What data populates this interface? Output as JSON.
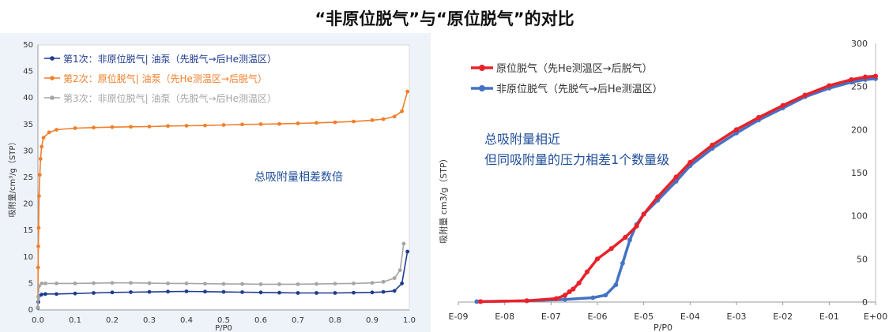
{
  "title": "“非原位脱气”与“原位脱气”的对比",
  "chart_data": [
    {
      "type": "line",
      "title": "",
      "xlabel": "P/P0",
      "ylabel": "吸附量/cm³/g（STP）",
      "xlim": [
        0,
        1.0
      ],
      "ylim": [
        0,
        50
      ],
      "xticks": [
        "0.0",
        "0.1",
        "0.2",
        "0.3",
        "0.4",
        "0.5",
        "0.6",
        "0.7",
        "0.8",
        "0.9",
        "1.0"
      ],
      "yticks": [
        "0",
        "5",
        "10",
        "15",
        "20",
        "25",
        "30",
        "35",
        "40",
        "45",
        "50"
      ],
      "legend_position": "top-left",
      "annotation": "总吸附量相差数倍",
      "grid": false,
      "series": [
        {
          "name": "第1次：非原位脱气| 油泵（先脱气→后He测温区）",
          "color": "#1f3c8f",
          "points": [
            [
              0.0,
              0.4
            ],
            [
              0.001,
              1.5
            ],
            [
              0.003,
              2.6
            ],
            [
              0.01,
              2.9
            ],
            [
              0.02,
              3.0
            ],
            [
              0.05,
              3.0
            ],
            [
              0.1,
              3.1
            ],
            [
              0.15,
              3.2
            ],
            [
              0.2,
              3.3
            ],
            [
              0.25,
              3.35
            ],
            [
              0.3,
              3.4
            ],
            [
              0.35,
              3.45
            ],
            [
              0.4,
              3.5
            ],
            [
              0.45,
              3.45
            ],
            [
              0.5,
              3.4
            ],
            [
              0.55,
              3.35
            ],
            [
              0.6,
              3.3
            ],
            [
              0.65,
              3.25
            ],
            [
              0.7,
              3.2
            ],
            [
              0.75,
              3.2
            ],
            [
              0.8,
              3.2
            ],
            [
              0.85,
              3.25
            ],
            [
              0.9,
              3.3
            ],
            [
              0.93,
              3.4
            ],
            [
              0.96,
              3.6
            ],
            [
              0.98,
              5.0
            ],
            [
              0.995,
              11.0
            ]
          ]
        },
        {
          "name": "第2次：原位脱气| 油泵（先He测温区→后脱气）",
          "color": "#f07f2a",
          "points": [
            [
              0.0,
              0.5
            ],
            [
              0.0005,
              8.0
            ],
            [
              0.001,
              12.0
            ],
            [
              0.002,
              15.5
            ],
            [
              0.003,
              21.5
            ],
            [
              0.005,
              25.5
            ],
            [
              0.007,
              28.5
            ],
            [
              0.01,
              30.8
            ],
            [
              0.015,
              32.5
            ],
            [
              0.03,
              33.5
            ],
            [
              0.05,
              34.0
            ],
            [
              0.1,
              34.3
            ],
            [
              0.15,
              34.4
            ],
            [
              0.2,
              34.5
            ],
            [
              0.25,
              34.55
            ],
            [
              0.3,
              34.6
            ],
            [
              0.35,
              34.7
            ],
            [
              0.4,
              34.75
            ],
            [
              0.45,
              34.8
            ],
            [
              0.5,
              34.9
            ],
            [
              0.55,
              35.0
            ],
            [
              0.6,
              35.05
            ],
            [
              0.65,
              35.1
            ],
            [
              0.7,
              35.2
            ],
            [
              0.75,
              35.3
            ],
            [
              0.8,
              35.4
            ],
            [
              0.85,
              35.55
            ],
            [
              0.9,
              35.8
            ],
            [
              0.93,
              36.0
            ],
            [
              0.96,
              36.5
            ],
            [
              0.98,
              37.5
            ],
            [
              0.995,
              41.2
            ]
          ]
        },
        {
          "name": "第3次：非原位脱气| 油泵（先脱气→后He测温区）",
          "color": "#a5a5a5",
          "points": [
            [
              0.0,
              0.5
            ],
            [
              0.001,
              2.5
            ],
            [
              0.003,
              4.5
            ],
            [
              0.01,
              5.0
            ],
            [
              0.02,
              5.0
            ],
            [
              0.05,
              5.0
            ],
            [
              0.1,
              5.0
            ],
            [
              0.15,
              5.05
            ],
            [
              0.2,
              5.1
            ],
            [
              0.25,
              5.1
            ],
            [
              0.3,
              5.05
            ],
            [
              0.35,
              5.0
            ],
            [
              0.4,
              5.0
            ],
            [
              0.45,
              4.95
            ],
            [
              0.5,
              4.9
            ],
            [
              0.55,
              4.9
            ],
            [
              0.6,
              4.85
            ],
            [
              0.65,
              4.85
            ],
            [
              0.7,
              4.85
            ],
            [
              0.75,
              4.9
            ],
            [
              0.8,
              4.95
            ],
            [
              0.85,
              5.0
            ],
            [
              0.9,
              5.1
            ],
            [
              0.93,
              5.3
            ],
            [
              0.96,
              6.0
            ],
            [
              0.975,
              7.5
            ],
            [
              0.985,
              12.5
            ]
          ]
        }
      ]
    },
    {
      "type": "line",
      "title": "",
      "xlabel": "P/P0",
      "ylabel": "吸附量  cm3/g（STP）",
      "xscale": "log",
      "xlim": [
        1e-09,
        1
      ],
      "ylim": [
        0,
        300
      ],
      "xticks": [
        "E-09",
        "E-08",
        "E-07",
        "E-06",
        "E-05",
        "E-04",
        "E-03",
        "E-02",
        "E-01",
        "E+00"
      ],
      "yticks": [
        "0",
        "50",
        "100",
        "150",
        "200",
        "250",
        "300"
      ],
      "legend_position": "top-left",
      "annotation_lines": [
        "总吸附量相近",
        "但同吸附量的压力相差1个数量级"
      ],
      "grid": false,
      "series": [
        {
          "name": "原位脱气（先He测温区→后脱气）",
          "color": "#e8222a",
          "points": [
            [
              3e-09,
              0.5
            ],
            [
              3e-08,
              1.5
            ],
            [
              1.3e-07,
              4
            ],
            [
              2e-07,
              8
            ],
            [
              2.5e-07,
              12
            ],
            [
              3e-07,
              15
            ],
            [
              4e-07,
              22
            ],
            [
              6e-07,
              35
            ],
            [
              1e-06,
              50
            ],
            [
              2e-06,
              62
            ],
            [
              4e-06,
              75
            ],
            [
              7e-06,
              88
            ],
            [
              1e-05,
              102
            ],
            [
              2e-05,
              122
            ],
            [
              5e-05,
              145
            ],
            [
              0.0001,
              162
            ],
            [
              0.0003,
              182
            ],
            [
              0.001,
              200
            ],
            [
              0.003,
              214
            ],
            [
              0.01,
              228
            ],
            [
              0.03,
              240
            ],
            [
              0.1,
              251
            ],
            [
              0.3,
              258
            ],
            [
              0.6,
              261
            ],
            [
              1.0,
              262
            ]
          ]
        },
        {
          "name": "非原位脱气（先脱气→后He测温区）",
          "color": "#4472c4",
          "points": [
            [
              2.5e-09,
              0.5
            ],
            [
              3e-08,
              1.5
            ],
            [
              2e-07,
              3
            ],
            [
              8e-07,
              5
            ],
            [
              1.5e-06,
              8
            ],
            [
              2.5e-06,
              20
            ],
            [
              3.5e-06,
              45
            ],
            [
              5e-06,
              72
            ],
            [
              7e-06,
              90
            ],
            [
              1e-05,
              102
            ],
            [
              2e-05,
              118
            ],
            [
              5e-05,
              140
            ],
            [
              0.0001,
              158
            ],
            [
              0.0003,
              178
            ],
            [
              0.001,
              196
            ],
            [
              0.003,
              211
            ],
            [
              0.01,
              225
            ],
            [
              0.03,
              238
            ],
            [
              0.1,
              248
            ],
            [
              0.3,
              255
            ],
            [
              0.6,
              258
            ],
            [
              1.0,
              259
            ]
          ]
        }
      ]
    }
  ]
}
